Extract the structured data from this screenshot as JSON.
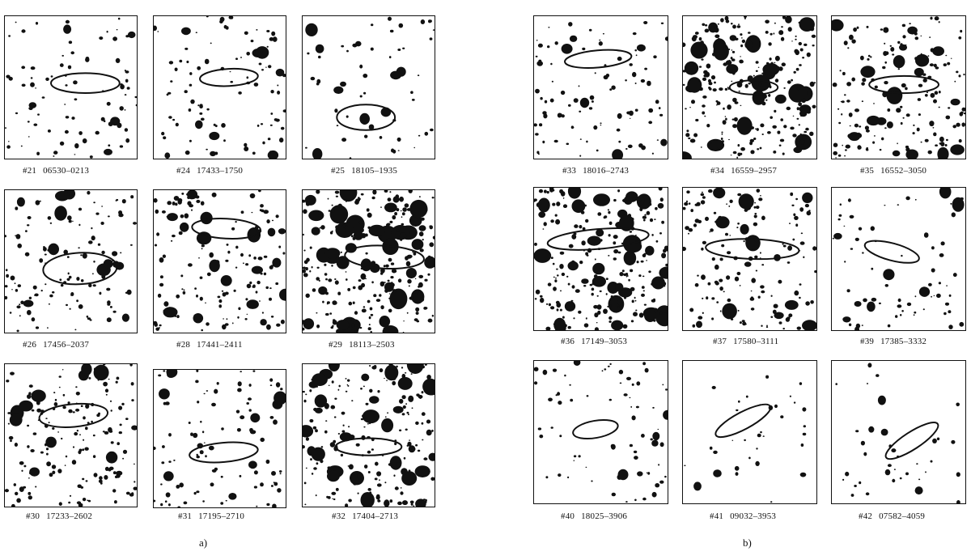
{
  "figure": {
    "panel_a": {
      "label": "a)",
      "charts": [
        {
          "num": "#21",
          "id": "06530–0213",
          "density": 0.25,
          "seed": 21
        },
        {
          "num": "#24",
          "id": "17433–1750",
          "density": 0.3,
          "seed": 24
        },
        {
          "num": "#25",
          "id": "18105–1935",
          "density": 0.15,
          "seed": 25
        },
        {
          "num": "#26",
          "id": "17456–2037",
          "density": 0.4,
          "seed": 26
        },
        {
          "num": "#28",
          "id": "17441–2411",
          "density": 0.5,
          "seed": 28
        },
        {
          "num": "#29",
          "id": "18113–2503",
          "density": 1.0,
          "seed": 29
        },
        {
          "num": "#30",
          "id": "17233–2602",
          "density": 0.55,
          "seed": 30
        },
        {
          "num": "#31",
          "id": "17195–2710",
          "density": 0.3,
          "seed": 31
        },
        {
          "num": "#32",
          "id": "17404–2713",
          "density": 0.75,
          "seed": 32
        }
      ]
    },
    "panel_b": {
      "label": "b)",
      "charts": [
        {
          "num": "#33",
          "id": "18016–2743",
          "density": 0.3,
          "seed": 33
        },
        {
          "num": "#34",
          "id": "16559–2957",
          "density": 0.95,
          "seed": 34
        },
        {
          "num": "#35",
          "id": "16552–3050",
          "density": 0.6,
          "seed": 35
        },
        {
          "num": "#36",
          "id": "17149–3053",
          "density": 0.9,
          "seed": 36
        },
        {
          "num": "#37",
          "id": "17580–3111",
          "density": 0.55,
          "seed": 37
        },
        {
          "num": "#39",
          "id": "17385–3332",
          "density": 0.2,
          "seed": 39
        },
        {
          "num": "#40",
          "id": "18025–3906",
          "density": 0.2,
          "seed": 40
        },
        {
          "num": "#41",
          "id": "09032–3953",
          "density": 0.05,
          "seed": 41
        },
        {
          "num": "#42",
          "id": "07582–4059",
          "density": 0.06,
          "seed": 42
        }
      ]
    }
  }
}
